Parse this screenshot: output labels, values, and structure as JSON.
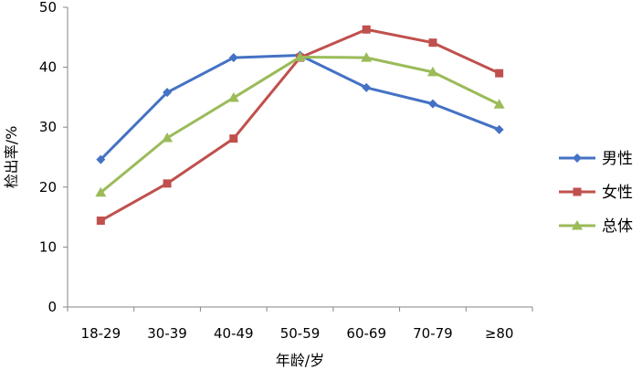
{
  "chart_data": {
    "type": "line",
    "title": "",
    "xlabel": "年龄/岁",
    "ylabel": "检出率/%",
    "categories": [
      "18-29",
      "30-39",
      "40-49",
      "50-59",
      "60-69",
      "70-79",
      "≥80"
    ],
    "ylim": [
      0,
      50
    ],
    "yticks": [
      0,
      10,
      20,
      30,
      40,
      50
    ],
    "grid": false,
    "legend_position": "right",
    "series": [
      {
        "name": "男性",
        "color": "#4472C4",
        "marker": "diamond",
        "values": [
          24.6,
          35.8,
          41.6,
          42.0,
          36.6,
          33.9,
          29.6
        ]
      },
      {
        "name": "女性",
        "color": "#C0504D",
        "marker": "square",
        "values": [
          14.4,
          20.6,
          28.1,
          41.6,
          46.3,
          44.1,
          39.0
        ]
      },
      {
        "name": "总体",
        "color": "#9BBB59",
        "marker": "triangle",
        "values": [
          19.1,
          28.2,
          34.9,
          41.7,
          41.6,
          39.2,
          33.8
        ]
      }
    ]
  }
}
